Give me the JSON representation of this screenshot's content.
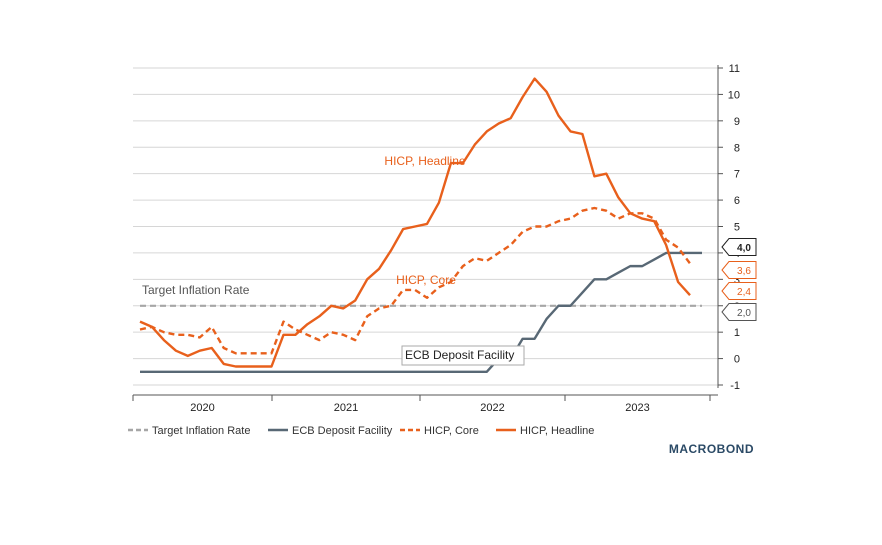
{
  "chart_data": {
    "type": "line",
    "title": "",
    "xlabel": "",
    "ylabel": "",
    "ylim": [
      -1,
      11
    ],
    "yticks": [
      -1,
      0,
      1,
      2,
      3,
      4,
      5,
      6,
      7,
      8,
      9,
      10,
      11
    ],
    "xlim": [
      "2020-01",
      "2023-12"
    ],
    "year_labels": [
      "2020",
      "2021",
      "2022",
      "2023"
    ],
    "grid": true,
    "legend_position": "bottom",
    "series": [
      {
        "name": "Target Inflation Rate",
        "style": "dashed",
        "color": "#a6a6a6",
        "points": [
          [
            "2020-01",
            2.0
          ],
          [
            "2023-12",
            2.0
          ]
        ]
      },
      {
        "name": "ECB Deposit Facility",
        "style": "solid",
        "color": "#586875",
        "points": [
          [
            "2020-01",
            -0.5
          ],
          [
            "2022-06",
            -0.5
          ],
          [
            "2022-07",
            0.0
          ],
          [
            "2022-08",
            0.0
          ],
          [
            "2022-09",
            0.75
          ],
          [
            "2022-10",
            0.75
          ],
          [
            "2022-11",
            1.5
          ],
          [
            "2022-12",
            2.0
          ],
          [
            "2023-01",
            2.0
          ],
          [
            "2023-02",
            2.5
          ],
          [
            "2023-03",
            3.0
          ],
          [
            "2023-04",
            3.0
          ],
          [
            "2023-05",
            3.25
          ],
          [
            "2023-06",
            3.5
          ],
          [
            "2023-07",
            3.5
          ],
          [
            "2023-08",
            3.75
          ],
          [
            "2023-09",
            4.0
          ],
          [
            "2023-10",
            4.0
          ],
          [
            "2023-11",
            4.0
          ],
          [
            "2023-12",
            4.0
          ]
        ]
      },
      {
        "name": "HICP, Core",
        "style": "dashed",
        "color": "#e8601c",
        "points": [
          [
            "2020-01",
            1.1
          ],
          [
            "2020-02",
            1.2
          ],
          [
            "2020-03",
            1.0
          ],
          [
            "2020-04",
            0.9
          ],
          [
            "2020-05",
            0.9
          ],
          [
            "2020-06",
            0.8
          ],
          [
            "2020-07",
            1.2
          ],
          [
            "2020-08",
            0.4
          ],
          [
            "2020-09",
            0.2
          ],
          [
            "2020-10",
            0.2
          ],
          [
            "2020-11",
            0.2
          ],
          [
            "2020-12",
            0.2
          ],
          [
            "2021-01",
            1.4
          ],
          [
            "2021-02",
            1.1
          ],
          [
            "2021-03",
            0.9
          ],
          [
            "2021-04",
            0.7
          ],
          [
            "2021-05",
            1.0
          ],
          [
            "2021-06",
            0.9
          ],
          [
            "2021-07",
            0.7
          ],
          [
            "2021-08",
            1.6
          ],
          [
            "2021-09",
            1.9
          ],
          [
            "2021-10",
            2.0
          ],
          [
            "2021-11",
            2.6
          ],
          [
            "2021-12",
            2.6
          ],
          [
            "2022-01",
            2.3
          ],
          [
            "2022-02",
            2.7
          ],
          [
            "2022-03",
            2.9
          ],
          [
            "2022-04",
            3.5
          ],
          [
            "2022-05",
            3.8
          ],
          [
            "2022-06",
            3.7
          ],
          [
            "2022-07",
            4.0
          ],
          [
            "2022-08",
            4.3
          ],
          [
            "2022-09",
            4.8
          ],
          [
            "2022-10",
            5.0
          ],
          [
            "2022-11",
            5.0
          ],
          [
            "2022-12",
            5.2
          ],
          [
            "2023-01",
            5.3
          ],
          [
            "2023-02",
            5.6
          ],
          [
            "2023-03",
            5.7
          ],
          [
            "2023-04",
            5.6
          ],
          [
            "2023-05",
            5.3
          ],
          [
            "2023-06",
            5.5
          ],
          [
            "2023-07",
            5.5
          ],
          [
            "2023-08",
            5.3
          ],
          [
            "2023-09",
            4.5
          ],
          [
            "2023-10",
            4.2
          ],
          [
            "2023-11",
            3.6
          ]
        ]
      },
      {
        "name": "HICP, Headline",
        "style": "solid",
        "color": "#e8601c",
        "points": [
          [
            "2020-01",
            1.4
          ],
          [
            "2020-02",
            1.2
          ],
          [
            "2020-03",
            0.7
          ],
          [
            "2020-04",
            0.3
          ],
          [
            "2020-05",
            0.1
          ],
          [
            "2020-06",
            0.3
          ],
          [
            "2020-07",
            0.4
          ],
          [
            "2020-08",
            -0.2
          ],
          [
            "2020-09",
            -0.3
          ],
          [
            "2020-10",
            -0.3
          ],
          [
            "2020-11",
            -0.3
          ],
          [
            "2020-12",
            -0.3
          ],
          [
            "2021-01",
            0.9
          ],
          [
            "2021-02",
            0.9
          ],
          [
            "2021-03",
            1.3
          ],
          [
            "2021-04",
            1.6
          ],
          [
            "2021-05",
            2.0
          ],
          [
            "2021-06",
            1.9
          ],
          [
            "2021-07",
            2.2
          ],
          [
            "2021-08",
            3.0
          ],
          [
            "2021-09",
            3.4
          ],
          [
            "2021-10",
            4.1
          ],
          [
            "2021-11",
            4.9
          ],
          [
            "2021-12",
            5.0
          ],
          [
            "2022-01",
            5.1
          ],
          [
            "2022-02",
            5.9
          ],
          [
            "2022-03",
            7.4
          ],
          [
            "2022-04",
            7.4
          ],
          [
            "2022-05",
            8.1
          ],
          [
            "2022-06",
            8.6
          ],
          [
            "2022-07",
            8.9
          ],
          [
            "2022-08",
            9.1
          ],
          [
            "2022-09",
            9.9
          ],
          [
            "2022-10",
            10.6
          ],
          [
            "2022-11",
            10.1
          ],
          [
            "2022-12",
            9.2
          ],
          [
            "2023-01",
            8.6
          ],
          [
            "2023-02",
            8.5
          ],
          [
            "2023-03",
            6.9
          ],
          [
            "2023-04",
            7.0
          ],
          [
            "2023-05",
            6.1
          ],
          [
            "2023-06",
            5.5
          ],
          [
            "2023-07",
            5.3
          ],
          [
            "2023-08",
            5.2
          ],
          [
            "2023-09",
            4.3
          ],
          [
            "2023-10",
            2.9
          ],
          [
            "2023-11",
            2.4
          ]
        ]
      }
    ],
    "annotations": [
      {
        "text": "HICP, Headline",
        "series": "HICP, Headline",
        "color": "#e8601c",
        "boxed": false
      },
      {
        "text": "HICP, Core",
        "series": "HICP, Core",
        "color": "#e8601c",
        "boxed": false
      },
      {
        "text": "Target Inflation Rate",
        "series": "Target Inflation Rate",
        "color": "#555555",
        "boxed": false
      },
      {
        "text": "ECB Deposit Facility",
        "series": "ECB Deposit Facility",
        "color": "#222222",
        "boxed": true
      }
    ],
    "end_tags": [
      {
        "text": "4,0",
        "value": 4.0,
        "series": "ECB Deposit Facility",
        "color": "#222222",
        "bold": true
      },
      {
        "text": "3,6",
        "value": 3.6,
        "series": "HICP, Core",
        "color": "#e8601c",
        "bold": false
      },
      {
        "text": "2,4",
        "value": 2.4,
        "series": "HICP, Headline",
        "color": "#e8601c",
        "bold": false
      },
      {
        "text": "2,0",
        "value": 2.0,
        "series": "Target Inflation Rate",
        "color": "#555555",
        "bold": false
      }
    ]
  },
  "legend": {
    "items": [
      {
        "label": "Target Inflation Rate",
        "color": "#a6a6a6",
        "style": "dashed"
      },
      {
        "label": "ECB Deposit Facility",
        "color": "#586875",
        "style": "solid"
      },
      {
        "label": "HICP, Core",
        "color": "#e8601c",
        "style": "dashed"
      },
      {
        "label": "HICP, Headline",
        "color": "#e8601c",
        "style": "solid"
      }
    ]
  },
  "brand": {
    "text": "MACROBOND"
  }
}
